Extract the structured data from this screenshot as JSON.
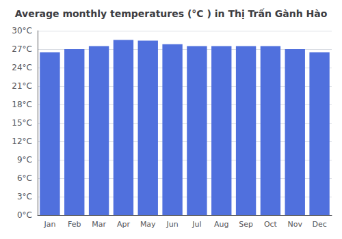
{
  "chart_data": {
    "type": "bar",
    "title": "Average monthly temperatures (°C ) in Thị Trấn Gành Hào",
    "categories": [
      "Jan",
      "Feb",
      "Mar",
      "Apr",
      "May",
      "Jun",
      "Jul",
      "Aug",
      "Sep",
      "Oct",
      "Nov",
      "Dec"
    ],
    "values": [
      26.5,
      27.0,
      27.5,
      28.5,
      28.4,
      27.8,
      27.5,
      27.5,
      27.5,
      27.5,
      27.0,
      26.5
    ],
    "ylim": [
      0,
      30
    ],
    "yticks": [
      {
        "value": 0,
        "label": "0°C"
      },
      {
        "value": 3,
        "label": "3°C"
      },
      {
        "value": 6,
        "label": "6°C"
      },
      {
        "value": 9,
        "label": "9°C"
      },
      {
        "value": 12,
        "label": "12°C"
      },
      {
        "value": 15,
        "label": "15°C"
      },
      {
        "value": 18,
        "label": "18°C"
      },
      {
        "value": 21,
        "label": "21°C"
      },
      {
        "value": 24,
        "label": "24°C"
      },
      {
        "value": 27,
        "label": "27°C"
      },
      {
        "value": 30,
        "label": "30°C"
      }
    ],
    "grid": true
  }
}
